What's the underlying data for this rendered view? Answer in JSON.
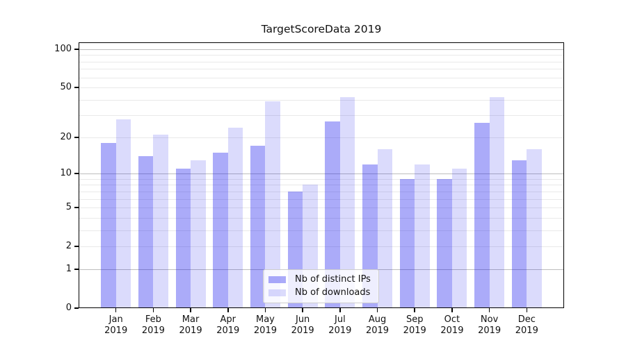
{
  "chart_data": {
    "type": "bar",
    "title": "TargetScoreData 2019",
    "categories": [
      "Jan",
      "Feb",
      "Mar",
      "Apr",
      "May",
      "Jun",
      "Jul",
      "Aug",
      "Sep",
      "Oct",
      "Nov",
      "Dec"
    ],
    "year_label": "2019",
    "series": [
      {
        "name": "Nb of distinct IPs",
        "color": "rgba(13,13,238,0.35)",
        "values": [
          18,
          14,
          11,
          15,
          17,
          7,
          27,
          12,
          9,
          9,
          26,
          13
        ]
      },
      {
        "name": "Nb of downloads",
        "color": "rgba(13,13,238,0.15)",
        "values": [
          28,
          21,
          13,
          24,
          39,
          8,
          42,
          16,
          12,
          11,
          42,
          16
        ]
      }
    ],
    "yscale": "log1p",
    "ylim": [
      0,
      113
    ],
    "y_ticks": [
      100,
      50,
      20,
      10,
      5,
      2,
      1,
      0
    ],
    "major_gridlines": [
      1,
      10,
      100
    ],
    "minor_gridlines": [
      2,
      3,
      4,
      5,
      6,
      7,
      8,
      9,
      20,
      30,
      40,
      50,
      60,
      70,
      80,
      90
    ],
    "grid": true,
    "legend_position": "lower center"
  },
  "colors": {
    "background": "#ffffff",
    "axis": "#000000",
    "major_grid": "#bdbdbd",
    "minor_grid": "#e9e9e9",
    "legend_border": "#cccccc",
    "text": "#111111"
  }
}
